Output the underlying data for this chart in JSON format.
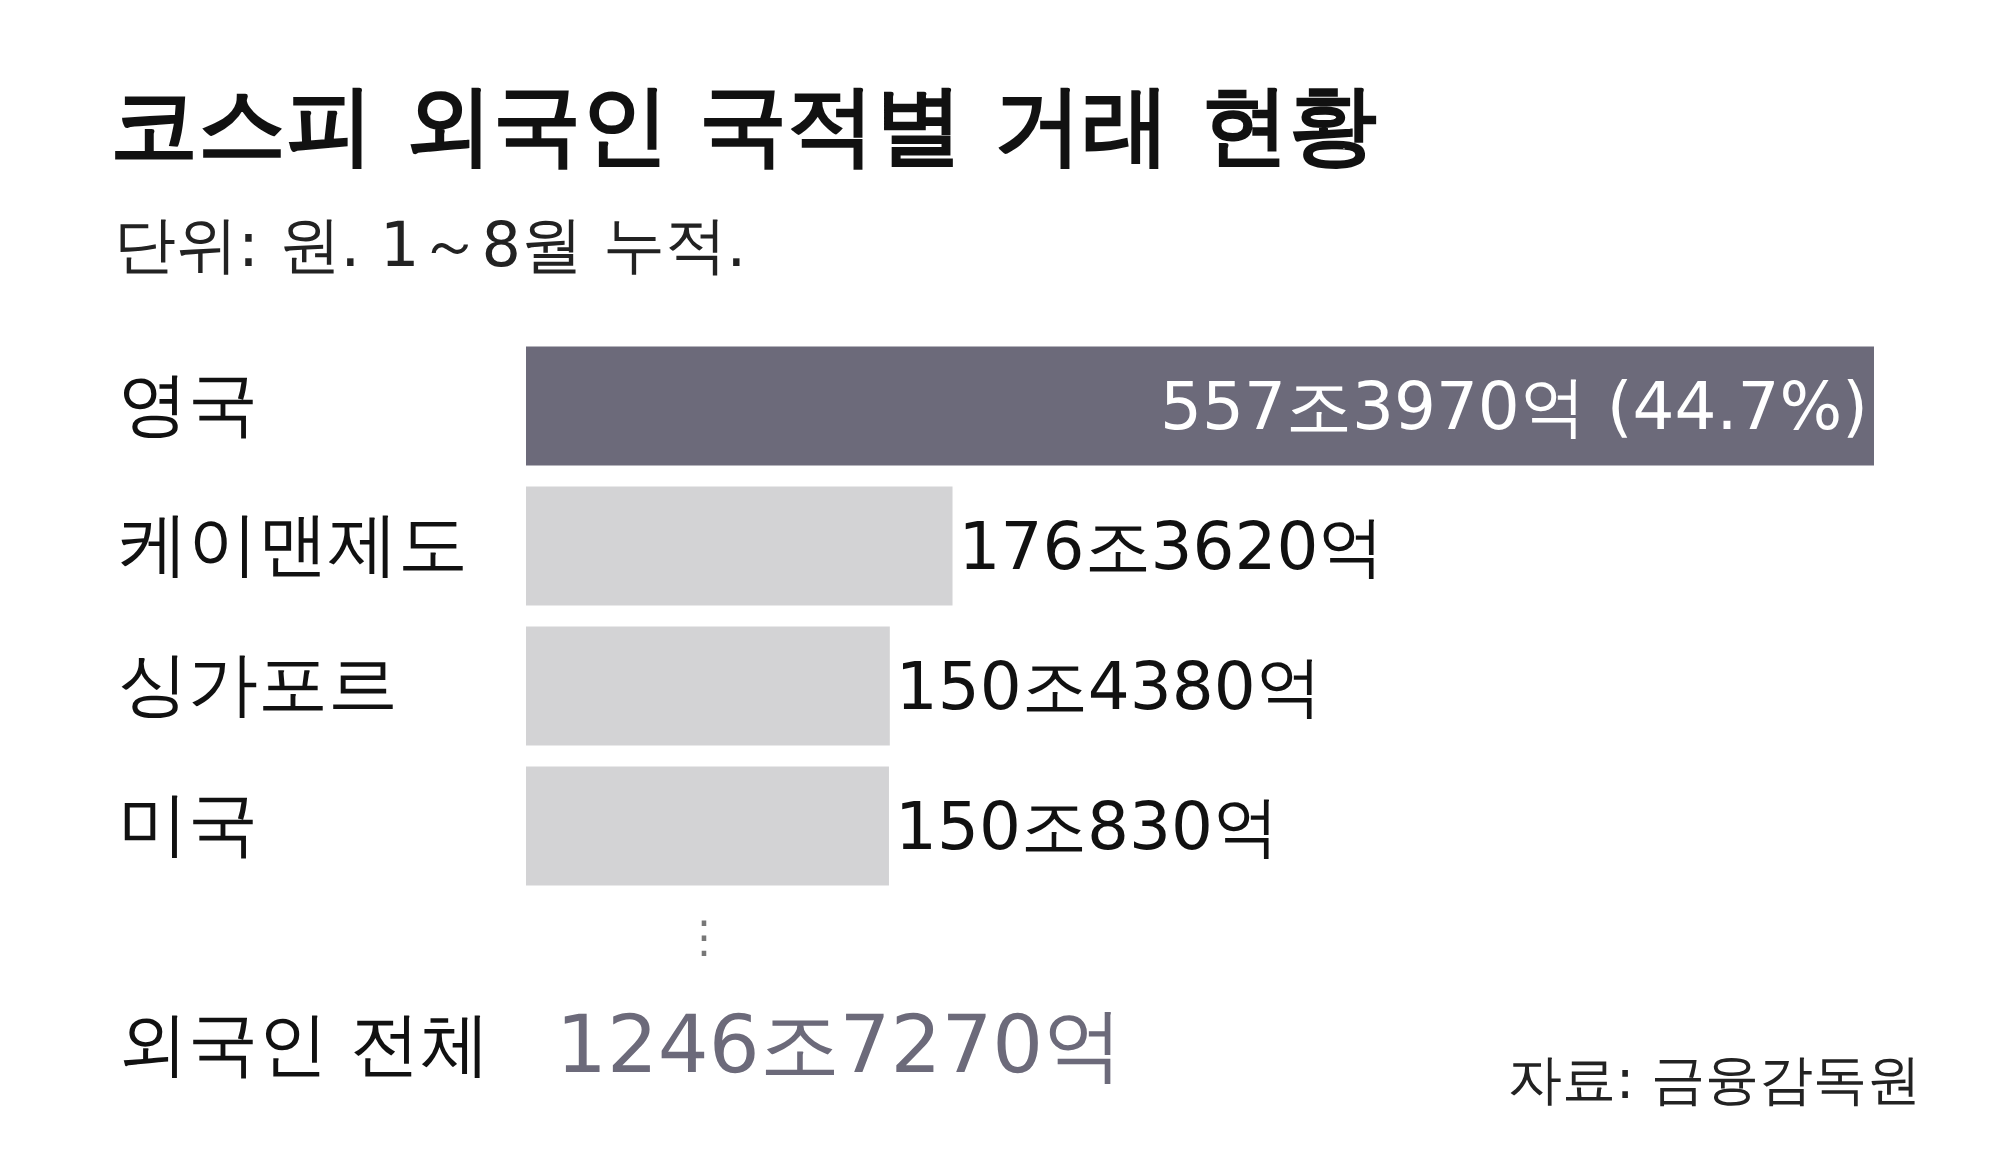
{
  "chart_data": {
    "type": "bar",
    "orientation": "horizontal",
    "title": "코스피 외국인 국적별 거래 현황",
    "subtitle": "단위: 원. 1～8월 누적.",
    "categories": [
      "영국",
      "케이맨제도",
      "싱가포르",
      "미국"
    ],
    "values": [
      557.397,
      176.362,
      150.438,
      150.083
    ],
    "colors": [
      "#6c6a7a",
      "#d3d3d5",
      "#d3d3d5",
      "#d3d3d5"
    ],
    "value_labels": [
      "557조3970억 (44.7%)",
      "176조3620억",
      "150조4380억",
      "150조830억"
    ],
    "annotations": [
      "⋮",
      "외국인 전체",
      "1246조7270억",
      "자료: 금융감독원"
    ]
  }
}
